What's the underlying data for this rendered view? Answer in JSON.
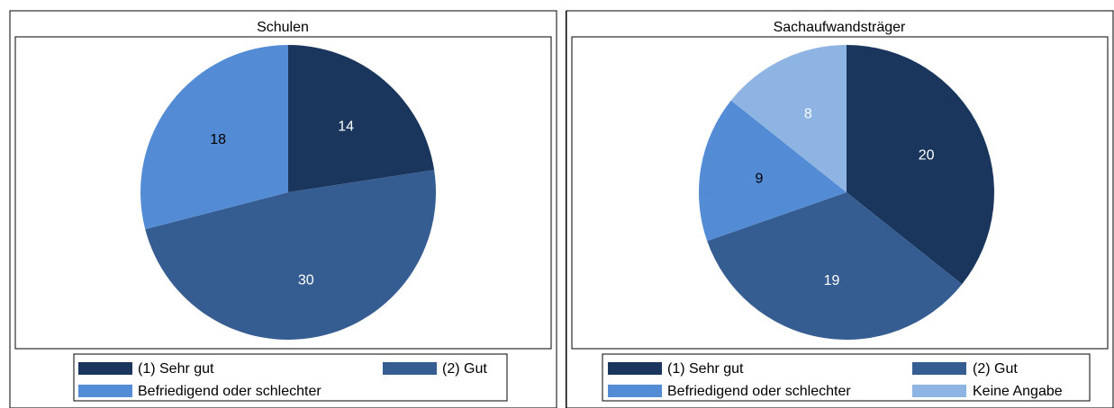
{
  "chart_data": [
    {
      "type": "pie",
      "title": "Schulen",
      "slices": [
        {
          "label": "(1) Sehr gut",
          "value": 14,
          "color": "#1a365d",
          "text_color": "#ffffff"
        },
        {
          "label": "(2) Gut",
          "value": 30,
          "color": "#355d91",
          "text_color": "#ffffff"
        },
        {
          "label": "Befriedigend oder schlechter",
          "value": 18,
          "color": "#538cd5",
          "text_color": "#000000"
        }
      ],
      "start": "12 o'clock",
      "direction": "clockwise",
      "legend_position": "bottom"
    },
    {
      "type": "pie",
      "title": "Sachaufwandsträger",
      "slices": [
        {
          "label": "(1) Sehr gut",
          "value": 20,
          "color": "#1a365d",
          "text_color": "#ffffff"
        },
        {
          "label": "(2) Gut",
          "value": 19,
          "color": "#355d91",
          "text_color": "#ffffff"
        },
        {
          "label": "Befriedigend oder schlechter",
          "value": 9,
          "color": "#538cd5",
          "text_color": "#000000"
        },
        {
          "label": "Keine Angabe",
          "value": 8,
          "color": "#8eb4e3",
          "text_color": "#ffffff"
        }
      ],
      "start": "12 o'clock",
      "direction": "clockwise",
      "legend_position": "bottom"
    }
  ]
}
